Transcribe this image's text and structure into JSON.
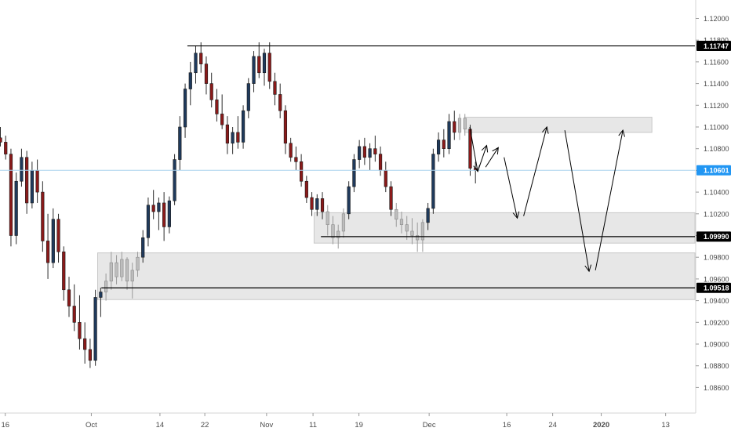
{
  "chart_data": {
    "type": "candlestick",
    "y_axis": {
      "position": "right",
      "range": [
        1.085,
        1.1215
      ],
      "ticks": [
        "1.12000",
        "1.11800",
        "1.11600",
        "1.11400",
        "1.11200",
        "1.11000",
        "1.10800",
        "1.10600",
        "1.10400",
        "1.10200",
        "1.10000",
        "1.09800",
        "1.09600",
        "1.09400",
        "1.09200",
        "1.09000",
        "1.08800",
        "1.08600"
      ],
      "tick_values": [
        1.12,
        1.118,
        1.116,
        1.114,
        1.112,
        1.11,
        1.108,
        1.106,
        1.104,
        1.102,
        1.1,
        1.098,
        1.096,
        1.094,
        1.092,
        1.09,
        1.088,
        1.086
      ]
    },
    "x_axis": {
      "range": [
        0,
        135
      ],
      "labels": [
        {
          "x": 1,
          "text": "16",
          "bold": false
        },
        {
          "x": 17.3,
          "text": "Oct",
          "bold": false
        },
        {
          "x": 30.3,
          "text": "14",
          "bold": false
        },
        {
          "x": 38.8,
          "text": "22",
          "bold": false
        },
        {
          "x": 50.5,
          "text": "Nov",
          "bold": false
        },
        {
          "x": 59.3,
          "text": "11",
          "bold": false
        },
        {
          "x": 68.0,
          "text": "19",
          "bold": false
        },
        {
          "x": 81.3,
          "text": "Dec",
          "bold": false
        },
        {
          "x": 96.0,
          "text": "16",
          "bold": false
        },
        {
          "x": 104.7,
          "text": "24",
          "bold": false
        },
        {
          "x": 113.9,
          "text": "2020",
          "bold": true
        },
        {
          "x": 126.1,
          "text": "13",
          "bold": false
        }
      ]
    },
    "colors": {
      "up": "#1f3a5c",
      "down": "#8b1a1a",
      "wick": "#2b2b2b",
      "faded": "#9a9a9a",
      "zone_fill": "#e3e3e3",
      "zone_stroke": "#c8c8c8",
      "level_line": "#000000",
      "price_line": "#a9d2ee",
      "current_label_bg": "#2196f3",
      "level_label_bg": "#000000"
    },
    "current_price": {
      "value": 1.10601,
      "label": "1.10601"
    },
    "levels": [
      {
        "value": 1.11747,
        "label": "1.11747",
        "x_start": 35.5
      },
      {
        "value": 1.0999,
        "label": "1.09990",
        "x_start": 60.8
      },
      {
        "value": 1.09518,
        "label": "1.09518",
        "x_start": 19.2
      }
    ],
    "zones": [
      {
        "x0": 18.5,
        "x1": 135,
        "y_top": 1.0984,
        "y_bottom": 1.0941
      },
      {
        "x0": 59.5,
        "x1": 135,
        "y_top": 1.1021,
        "y_bottom": 1.0993
      },
      {
        "x0": 88.0,
        "x1": 123.5,
        "y_top": 1.1109,
        "y_bottom": 1.1095
      }
    ],
    "arrows": [
      [
        [
          89.0,
          1.11
        ],
        [
          90.5,
          1.1059
        ]
      ],
      [
        [
          90.5,
          1.1059
        ],
        [
          92.2,
          1.1083
        ]
      ],
      [
        [
          92.0,
          1.1063
        ],
        [
          94.4,
          1.1081
        ]
      ],
      [
        [
          95.5,
          1.1072
        ],
        [
          98.0,
          1.1016
        ]
      ],
      [
        [
          99.2,
          1.1018
        ],
        [
          103.6,
          1.11
        ]
      ],
      [
        [
          107.0,
          1.1097
        ],
        [
          111.6,
          1.0967
        ]
      ],
      [
        [
          112.8,
          1.0968
        ],
        [
          118.0,
          1.1097
        ]
      ]
    ],
    "candles": [
      {
        "x": 0,
        "o": 1.109,
        "h": 1.11,
        "l": 1.1082,
        "c": 1.1086
      },
      {
        "x": 1,
        "o": 1.1086,
        "h": 1.1092,
        "l": 1.107,
        "c": 1.1075
      },
      {
        "x": 2,
        "o": 1.1075,
        "h": 1.108,
        "l": 1.099,
        "c": 1.1
      },
      {
        "x": 3,
        "o": 1.1,
        "h": 1.1058,
        "l": 1.0992,
        "c": 1.105
      },
      {
        "x": 4,
        "o": 1.105,
        "h": 1.108,
        "l": 1.1045,
        "c": 1.1072
      },
      {
        "x": 5,
        "o": 1.1072,
        "h": 1.1078,
        "l": 1.102,
        "c": 1.103
      },
      {
        "x": 6,
        "o": 1.103,
        "h": 1.1068,
        "l": 1.1025,
        "c": 1.106
      },
      {
        "x": 7,
        "o": 1.106,
        "h": 1.107,
        "l": 1.103,
        "c": 1.104
      },
      {
        "x": 8,
        "o": 1.104,
        "h": 1.105,
        "l": 1.0985,
        "c": 1.0995
      },
      {
        "x": 9,
        "o": 1.0995,
        "h": 1.102,
        "l": 1.096,
        "c": 1.0975
      },
      {
        "x": 10,
        "o": 1.0975,
        "h": 1.1025,
        "l": 1.097,
        "c": 1.1015
      },
      {
        "x": 11,
        "o": 1.1015,
        "h": 1.102,
        "l": 1.0975,
        "c": 1.0985
      },
      {
        "x": 12,
        "o": 1.0985,
        "h": 1.099,
        "l": 1.094,
        "c": 1.095
      },
      {
        "x": 13,
        "o": 1.095,
        "h": 1.0962,
        "l": 1.0925,
        "c": 1.0935
      },
      {
        "x": 14,
        "o": 1.0935,
        "h": 1.0955,
        "l": 1.0912,
        "c": 1.092
      },
      {
        "x": 15,
        "o": 1.092,
        "h": 1.0945,
        "l": 1.0895,
        "c": 1.0905
      },
      {
        "x": 16,
        "o": 1.0905,
        "h": 1.092,
        "l": 1.0882,
        "c": 1.0895
      },
      {
        "x": 17,
        "o": 1.0895,
        "h": 1.0905,
        "l": 1.0878,
        "c": 1.0885
      },
      {
        "x": 18,
        "o": 1.0885,
        "h": 1.095,
        "l": 1.088,
        "c": 1.0943
      },
      {
        "x": 19,
        "o": 1.0943,
        "h": 1.0952,
        "l": 1.0925,
        "c": 1.0948
      },
      {
        "x": 20,
        "o": 1.0948,
        "h": 1.0965,
        "l": 1.094,
        "c": 1.0958,
        "f": 1
      },
      {
        "x": 21,
        "o": 1.0958,
        "h": 1.0985,
        "l": 1.095,
        "c": 1.0975,
        "f": 1
      },
      {
        "x": 22,
        "o": 1.0975,
        "h": 1.0982,
        "l": 1.0955,
        "c": 1.0962,
        "f": 1
      },
      {
        "x": 23,
        "o": 1.0962,
        "h": 1.0985,
        "l": 1.0958,
        "c": 1.0978,
        "f": 1
      },
      {
        "x": 24,
        "o": 1.0978,
        "h": 1.098,
        "l": 1.095,
        "c": 1.0958,
        "f": 1
      },
      {
        "x": 25,
        "o": 1.0958,
        "h": 1.0975,
        "l": 1.0942,
        "c": 1.0968,
        "f": 1
      },
      {
        "x": 26,
        "o": 1.0968,
        "h": 1.0985,
        "l": 1.0962,
        "c": 1.098,
        "f": 1
      },
      {
        "x": 27,
        "o": 1.098,
        "h": 1.1005,
        "l": 1.0975,
        "c": 1.0998
      },
      {
        "x": 28,
        "o": 1.0998,
        "h": 1.1035,
        "l": 1.099,
        "c": 1.1028
      },
      {
        "x": 29,
        "o": 1.1028,
        "h": 1.1042,
        "l": 1.1015,
        "c": 1.1022
      },
      {
        "x": 30,
        "o": 1.1022,
        "h": 1.1035,
        "l": 1.1005,
        "c": 1.103
      },
      {
        "x": 31,
        "o": 1.103,
        "h": 1.104,
        "l": 1.0995,
        "c": 1.1008
      },
      {
        "x": 32,
        "o": 1.1008,
        "h": 1.1036,
        "l": 1.1002,
        "c": 1.1032
      },
      {
        "x": 33,
        "o": 1.1032,
        "h": 1.1075,
        "l": 1.1028,
        "c": 1.107
      },
      {
        "x": 34,
        "o": 1.107,
        "h": 1.111,
        "l": 1.106,
        "c": 1.11
      },
      {
        "x": 35,
        "o": 1.11,
        "h": 1.114,
        "l": 1.109,
        "c": 1.1135
      },
      {
        "x": 36,
        "o": 1.1135,
        "h": 1.116,
        "l": 1.112,
        "c": 1.115
      },
      {
        "x": 37,
        "o": 1.115,
        "h": 1.1175,
        "l": 1.114,
        "c": 1.1168
      },
      {
        "x": 38,
        "o": 1.1168,
        "h": 1.1178,
        "l": 1.115,
        "c": 1.1158
      },
      {
        "x": 39,
        "o": 1.1158,
        "h": 1.1165,
        "l": 1.113,
        "c": 1.114
      },
      {
        "x": 40,
        "o": 1.114,
        "h": 1.115,
        "l": 1.1118,
        "c": 1.1125
      },
      {
        "x": 41,
        "o": 1.1125,
        "h": 1.1135,
        "l": 1.1105,
        "c": 1.1112
      },
      {
        "x": 42,
        "o": 1.1112,
        "h": 1.113,
        "l": 1.1098,
        "c": 1.1102
      },
      {
        "x": 43,
        "o": 1.1102,
        "h": 1.111,
        "l": 1.1075,
        "c": 1.1085
      },
      {
        "x": 44,
        "o": 1.1085,
        "h": 1.11,
        "l": 1.1075,
        "c": 1.1095
      },
      {
        "x": 45,
        "o": 1.1095,
        "h": 1.111,
        "l": 1.108,
        "c": 1.1086
      },
      {
        "x": 46,
        "o": 1.1086,
        "h": 1.112,
        "l": 1.108,
        "c": 1.1115
      },
      {
        "x": 47,
        "o": 1.1115,
        "h": 1.1145,
        "l": 1.1108,
        "c": 1.114
      },
      {
        "x": 48,
        "o": 1.114,
        "h": 1.117,
        "l": 1.1132,
        "c": 1.1165
      },
      {
        "x": 49,
        "o": 1.1165,
        "h": 1.1178,
        "l": 1.1145,
        "c": 1.115
      },
      {
        "x": 50,
        "o": 1.115,
        "h": 1.1172,
        "l": 1.1138,
        "c": 1.1168
      },
      {
        "x": 51,
        "o": 1.1168,
        "h": 1.1178,
        "l": 1.1135,
        "c": 1.1142
      },
      {
        "x": 52,
        "o": 1.1142,
        "h": 1.115,
        "l": 1.112,
        "c": 1.113
      },
      {
        "x": 53,
        "o": 1.113,
        "h": 1.114,
        "l": 1.1108,
        "c": 1.1115
      },
      {
        "x": 54,
        "o": 1.1115,
        "h": 1.112,
        "l": 1.1075,
        "c": 1.1085
      },
      {
        "x": 55,
        "o": 1.1085,
        "h": 1.109,
        "l": 1.1068,
        "c": 1.1072
      },
      {
        "x": 56,
        "o": 1.1072,
        "h": 1.1082,
        "l": 1.106,
        "c": 1.1068
      },
      {
        "x": 57,
        "o": 1.1068,
        "h": 1.1075,
        "l": 1.1045,
        "c": 1.105
      },
      {
        "x": 58,
        "o": 1.105,
        "h": 1.1055,
        "l": 1.103,
        "c": 1.1035
      },
      {
        "x": 59,
        "o": 1.1035,
        "h": 1.104,
        "l": 1.1018,
        "c": 1.1024
      },
      {
        "x": 60,
        "o": 1.1024,
        "h": 1.1038,
        "l": 1.1018,
        "c": 1.1034
      },
      {
        "x": 61,
        "o": 1.1034,
        "h": 1.104,
        "l": 1.1015,
        "c": 1.1022
      },
      {
        "x": 62,
        "o": 1.1022,
        "h": 1.1028,
        "l": 1.1,
        "c": 1.101,
        "f": 1
      },
      {
        "x": 63,
        "o": 1.101,
        "h": 1.1018,
        "l": 1.0992,
        "c": 1.0998,
        "f": 1
      },
      {
        "x": 64,
        "o": 1.0998,
        "h": 1.101,
        "l": 1.0988,
        "c": 1.1004,
        "f": 1
      },
      {
        "x": 65,
        "o": 1.1004,
        "h": 1.1025,
        "l": 1.0998,
        "c": 1.102,
        "f": 1
      },
      {
        "x": 66,
        "o": 1.102,
        "h": 1.105,
        "l": 1.1015,
        "c": 1.1045
      },
      {
        "x": 67,
        "o": 1.1045,
        "h": 1.1075,
        "l": 1.104,
        "c": 1.107
      },
      {
        "x": 68,
        "o": 1.107,
        "h": 1.1088,
        "l": 1.1062,
        "c": 1.1082
      },
      {
        "x": 69,
        "o": 1.1082,
        "h": 1.109,
        "l": 1.1065,
        "c": 1.1072
      },
      {
        "x": 70,
        "o": 1.1072,
        "h": 1.1085,
        "l": 1.106,
        "c": 1.108
      },
      {
        "x": 71,
        "o": 1.108,
        "h": 1.1092,
        "l": 1.1068,
        "c": 1.1075
      },
      {
        "x": 72,
        "o": 1.1075,
        "h": 1.1082,
        "l": 1.1055,
        "c": 1.106
      },
      {
        "x": 73,
        "o": 1.106,
        "h": 1.1068,
        "l": 1.104,
        "c": 1.1045
      },
      {
        "x": 74,
        "o": 1.1045,
        "h": 1.105,
        "l": 1.1018,
        "c": 1.1024
      },
      {
        "x": 75,
        "o": 1.1024,
        "h": 1.103,
        "l": 1.1008,
        "c": 1.1015,
        "f": 1
      },
      {
        "x": 76,
        "o": 1.1015,
        "h": 1.1022,
        "l": 1.1002,
        "c": 1.101,
        "f": 1
      },
      {
        "x": 77,
        "o": 1.101,
        "h": 1.1018,
        "l": 1.0996,
        "c": 1.1004,
        "f": 1
      },
      {
        "x": 78,
        "o": 1.1004,
        "h": 1.1016,
        "l": 1.0992,
        "c": 1.1,
        "f": 1
      },
      {
        "x": 79,
        "o": 1.1,
        "h": 1.1012,
        "l": 1.0985,
        "c": 1.0996,
        "f": 1
      },
      {
        "x": 80,
        "o": 1.0996,
        "h": 1.1015,
        "l": 1.0985,
        "c": 1.1012,
        "f": 1
      },
      {
        "x": 81,
        "o": 1.1012,
        "h": 1.103,
        "l": 1.1005,
        "c": 1.1025
      },
      {
        "x": 82,
        "o": 1.1025,
        "h": 1.108,
        "l": 1.102,
        "c": 1.1075
      },
      {
        "x": 83,
        "o": 1.1075,
        "h": 1.1095,
        "l": 1.1068,
        "c": 1.1088
      },
      {
        "x": 84,
        "o": 1.1088,
        "h": 1.1098,
        "l": 1.1072,
        "c": 1.108
      },
      {
        "x": 85,
        "o": 1.108,
        "h": 1.1112,
        "l": 1.1075,
        "c": 1.1105
      },
      {
        "x": 86,
        "o": 1.1105,
        "h": 1.1115,
        "l": 1.1088,
        "c": 1.1095
      },
      {
        "x": 87,
        "o": 1.1095,
        "h": 1.1112,
        "l": 1.1088,
        "c": 1.1108,
        "f": 1
      },
      {
        "x": 88,
        "o": 1.1108,
        "h": 1.1112,
        "l": 1.1092,
        "c": 1.1098,
        "f": 1
      },
      {
        "x": 89,
        "o": 1.1098,
        "h": 1.1102,
        "l": 1.1055,
        "c": 1.1062
      },
      {
        "x": 90,
        "o": 1.1062,
        "h": 1.1068,
        "l": 1.1048,
        "c": 1.106
      }
    ]
  }
}
